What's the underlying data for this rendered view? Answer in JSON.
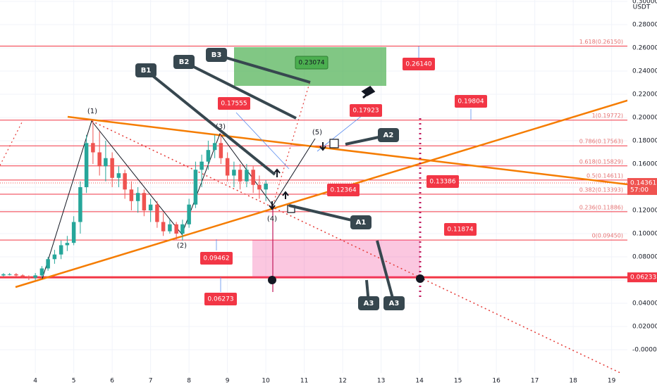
{
  "chart_data": {
    "type": "candlestick",
    "unit": "USDT",
    "up_color": "#26a69a",
    "down_color": "#ef5350",
    "grid": true,
    "xlim": [
      3.08,
      19.41
    ],
    "ylim": [
      -0.02,
      0.3012
    ],
    "xticks": [
      4,
      5,
      6,
      7,
      8,
      9,
      10,
      11,
      12,
      13,
      14,
      15,
      16,
      17,
      18,
      19
    ],
    "yticks": [
      {
        "value": 0.3,
        "label": "0.30000"
      },
      {
        "value": 0.28,
        "label": "0.28000"
      },
      {
        "value": 0.26,
        "label": "0.26000"
      },
      {
        "value": 0.24,
        "label": "0.24000"
      },
      {
        "value": 0.22,
        "label": "0.22000"
      },
      {
        "value": 0.2,
        "label": "0.20000"
      },
      {
        "value": 0.18,
        "label": "0.18000"
      },
      {
        "value": 0.16,
        "label": "0.16000"
      },
      {
        "value": 0.14,
        "label": "0.14000"
      },
      {
        "value": 0.12,
        "label": "0.12000"
      },
      {
        "value": 0.1,
        "label": "0.10000"
      },
      {
        "value": 0.08,
        "label": "0.08000"
      },
      {
        "value": 0.06,
        "label": "0.06000"
      },
      {
        "value": 0.04,
        "label": "0.04000"
      },
      {
        "value": 0.02,
        "label": "0.02000"
      },
      {
        "value": 0,
        "label": "-0.00000"
      }
    ],
    "x": [
      3.17,
      3.33,
      3.5,
      3.67,
      3.83,
      4,
      4.17,
      4.33,
      4.5,
      4.67,
      4.83,
      5,
      5.17,
      5.33,
      5.5,
      5.67,
      5.83,
      6,
      6.17,
      6.33,
      6.5,
      6.67,
      6.83,
      7,
      7.17,
      7.33,
      7.5,
      7.67,
      7.83,
      8,
      8.17,
      8.33,
      8.5,
      8.67,
      8.83,
      9,
      9.17,
      9.33,
      9.5,
      9.67,
      9.83,
      10
    ],
    "open": [
      0.064,
      0.065,
      0.065,
      0.064,
      0.063,
      0.062,
      0.064,
      0.07,
      0.078,
      0.082,
      0.09,
      0.092,
      0.11,
      0.14,
      0.178,
      0.17,
      0.158,
      0.165,
      0.148,
      0.152,
      0.138,
      0.128,
      0.135,
      0.12,
      0.125,
      0.11,
      0.102,
      0.108,
      0.1,
      0.108,
      0.125,
      0.155,
      0.162,
      0.172,
      0.178,
      0.165,
      0.15,
      0.155,
      0.145,
      0.155,
      0.142,
      0.138
    ],
    "high": [
      0.066,
      0.066,
      0.066,
      0.065,
      0.064,
      0.066,
      0.072,
      0.08,
      0.086,
      0.094,
      0.098,
      0.115,
      0.145,
      0.185,
      0.198,
      0.188,
      0.18,
      0.17,
      0.158,
      0.155,
      0.145,
      0.14,
      0.138,
      0.13,
      0.128,
      0.118,
      0.112,
      0.11,
      0.112,
      0.13,
      0.162,
      0.168,
      0.18,
      0.185,
      0.186,
      0.17,
      0.162,
      0.16,
      0.16,
      0.158,
      0.15,
      0.146
    ],
    "low": [
      0.063,
      0.064,
      0.063,
      0.062,
      0.06,
      0.06,
      0.062,
      0.068,
      0.074,
      0.078,
      0.085,
      0.09,
      0.1,
      0.135,
      0.16,
      0.15,
      0.145,
      0.14,
      0.14,
      0.13,
      0.12,
      0.118,
      0.115,
      0.11,
      0.105,
      0.098,
      0.1,
      0.095,
      0.094,
      0.105,
      0.122,
      0.14,
      0.155,
      0.165,
      0.16,
      0.145,
      0.14,
      0.138,
      0.14,
      0.135,
      0.13,
      0.128
    ],
    "close": [
      0.065,
      0.065,
      0.064,
      0.063,
      0.062,
      0.064,
      0.07,
      0.078,
      0.082,
      0.09,
      0.092,
      0.11,
      0.14,
      0.178,
      0.17,
      0.158,
      0.165,
      0.148,
      0.152,
      0.138,
      0.128,
      0.135,
      0.12,
      0.125,
      0.11,
      0.102,
      0.108,
      0.1,
      0.108,
      0.125,
      0.155,
      0.162,
      0.172,
      0.178,
      0.165,
      0.15,
      0.155,
      0.145,
      0.155,
      0.142,
      0.138,
      0.143
    ],
    "levels": [
      {
        "value": 0.2615,
        "label": "1.618(0.26150)"
      },
      {
        "value": 0.19772,
        "label": "1(0.19772)"
      },
      {
        "value": 0.17563,
        "label": "0.786(0.17563)"
      },
      {
        "value": 0.15829,
        "label": "0.618(0.15829)"
      },
      {
        "value": 0.14611,
        "label": "0.5(0.14611)"
      },
      {
        "value": 0.13393,
        "label": "0.382(0.13393)"
      },
      {
        "value": 0.11886,
        "label": "0.236(0.11886)"
      },
      {
        "value": 0.0945,
        "label": "0(0.09450)"
      }
    ],
    "support": {
      "value": 0.06233,
      "label": "0.06233"
    },
    "last_price": {
      "value": 0.14361,
      "label": "0.14361"
    },
    "countdown": "57:00",
    "price_notes": [
      {
        "value": 0.2614,
        "label": "0.26140"
      },
      {
        "value": 0.19804,
        "label": "0.19804"
      },
      {
        "value": 0.17555,
        "label": "0.17555"
      },
      {
        "value": 0.17923,
        "label": "0.17923"
      },
      {
        "value": 0.12364,
        "label": "0.12364"
      },
      {
        "value": 0.13386,
        "label": "0.13386"
      },
      {
        "value": 0.11874,
        "label": "0.11874"
      },
      {
        "value": 0.09462,
        "label": "0.09462"
      },
      {
        "value": 0.06273,
        "label": "0.06273"
      }
    ],
    "target_note": {
      "value": 0.23074,
      "label": "0.23074"
    },
    "wave_labels": [
      "(1)",
      "(2)",
      "(3)",
      "(4)",
      "(5)"
    ],
    "callouts": [
      "B3",
      "B2",
      "B1",
      "A1",
      "A2",
      "A3",
      "A3"
    ]
  }
}
